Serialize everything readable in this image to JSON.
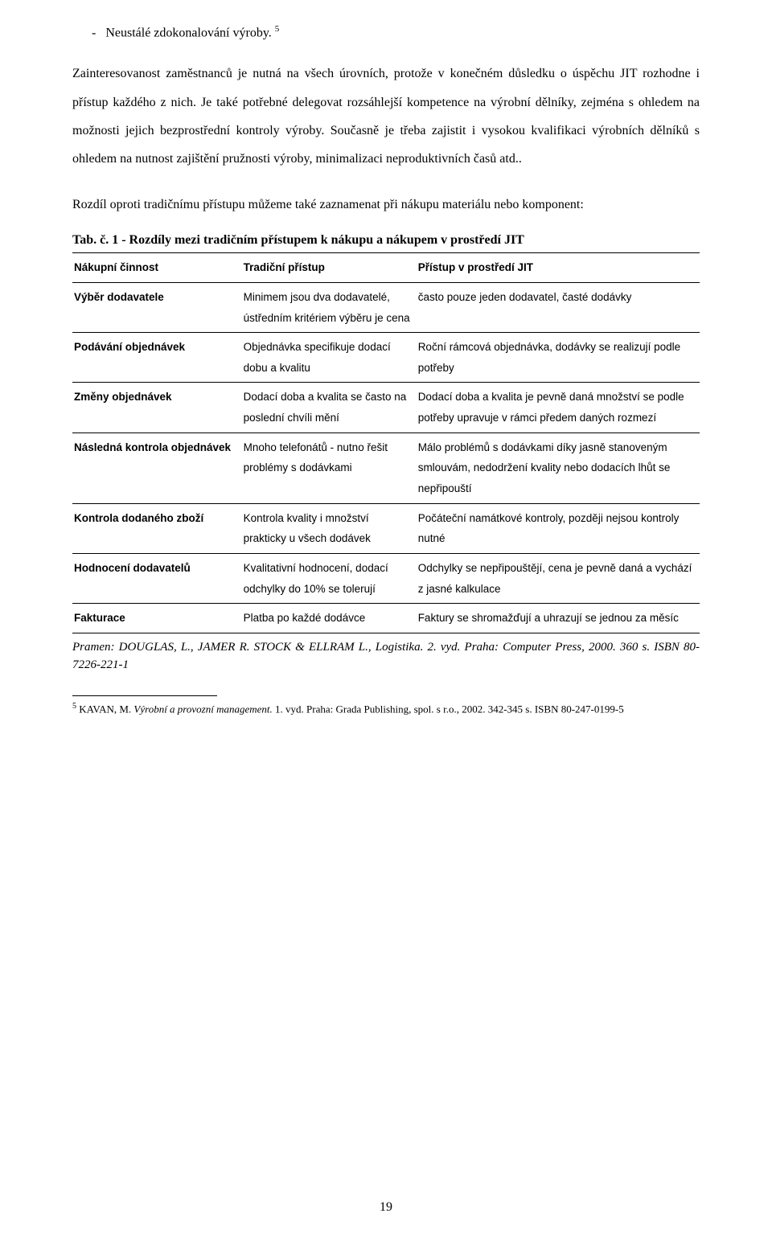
{
  "bullet": {
    "marker": "-",
    "text": "Neustálé zdokonalování  výroby.",
    "ref": "5"
  },
  "para1": "Zainteresovanost zaměstnanců je nutná na všech úrovních, protože v konečném důsledku o úspěchu JIT rozhodne i přístup každého z nich. Je také potřebné delegovat rozsáhlejší kompetence na výrobní dělníky, zejména s ohledem na možnosti jejich bezprostřední kontroly výroby. Současně je třeba zajistit i vysokou kvalifikaci výrobních dělníků s ohledem na nutnost zajištění pružnosti výroby, minimalizaci neproduktivních časů atd..",
  "para2": "Rozdíl oproti tradičnímu přístupu můžeme také zaznamenat při nákupu materiálu nebo komponent:",
  "tableTitle": {
    "label": "Tab. č. 1",
    "text": " - Rozdíly mezi tradičním přístupem k nákupu a nákupem v prostředí JIT"
  },
  "table": {
    "headers": [
      "Nákupní činnost",
      "Tradiční přístup",
      "Přístup v prostředí JIT"
    ],
    "rows": [
      [
        "Výběr dodavatele",
        "Minimem jsou dva dodavatelé, ústředním kritériem výběru je cena",
        "často pouze jeden dodavatel, časté dodávky"
      ],
      [
        "Podávání objednávek",
        "Objednávka specifikuje dodací dobu a kvalitu",
        "Roční rámcová objednávka, dodávky se realizují podle potřeby"
      ],
      [
        "Změny objednávek",
        "Dodací doba a kvalita se často na poslední chvíli mění",
        "Dodací doba a kvalita je pevně daná množství se podle potřeby upravuje v rámci předem daných rozmezí"
      ],
      [
        "Následná kontrola objednávek",
        "Mnoho telefonátů - nutno řešit problémy s dodávkami",
        "Málo problémů s dodávkami díky jasně stanoveným smlouvám, nedodržení kvality nebo dodacích lhůt se nepřipouští"
      ],
      [
        "Kontrola dodaného zboží",
        "Kontrola kvality i množství prakticky u všech dodávek",
        "Počáteční namátkové kontroly, později nejsou kontroly nutné"
      ],
      [
        "Hodnocení dodavatelů",
        "Kvalitativní hodnocení, dodací odchylky do 10% se tolerují",
        "Odchylky se nepřipouštějí, cena je pevně daná a vychází z jasné kalkulace"
      ],
      [
        "Fakturace",
        "Platba po každé dodávce",
        "Faktury se shromažďují a uhrazují se jednou za měsíc"
      ]
    ]
  },
  "source": "Pramen: DOUGLAS, L., JAMER R. STOCK & ELLRAM L., Logistika. 2. vyd.   Praha: Computer Press, 2000. 360  s. ISBN 80-7226-221-1",
  "footnote": {
    "num": "5",
    "text_italic": "Výrobní a provozní management.",
    "text_prefix": " KAVAN, M. ",
    "text_suffix": " 1. vyd. Praha: Grada Publishing, spol. s r.o., 2002. 342-345 s. ISBN 80-247-0199-5"
  },
  "pageNumber": "19"
}
